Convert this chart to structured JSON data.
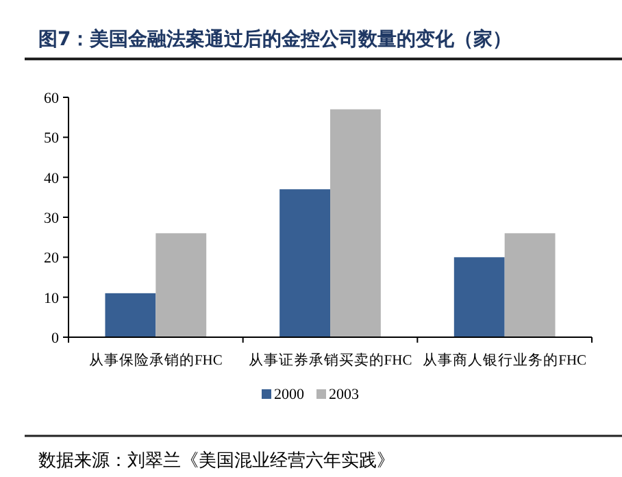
{
  "chart_data": {
    "type": "bar",
    "title": "图7：美国金融法案通过后的金控公司数量的变化（家）",
    "categories": [
      "从事保险承销的FHC",
      "从事证券承销买卖的FHC",
      "从事商人银行业务的FHC"
    ],
    "series": [
      {
        "name": "2000",
        "color": "#375f93",
        "values": [
          11,
          37,
          20
        ]
      },
      {
        "name": "2003",
        "color": "#b3b3b3",
        "values": [
          26,
          57,
          26
        ]
      }
    ],
    "ylim": [
      0,
      60
    ],
    "yticks": [
      0,
      10,
      20,
      30,
      40,
      50,
      60
    ],
    "grid": false,
    "legend": "bottom",
    "annotations": [
      "数据来源：刘翠兰《美国混业经营六年实践》"
    ]
  }
}
